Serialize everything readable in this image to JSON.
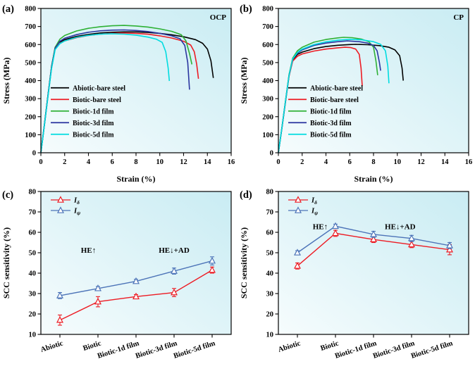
{
  "figure": {
    "bg": "#ffffff",
    "plot_gradient": [
      "#f6fcfd",
      "#c9ecf3"
    ],
    "axis_color": "#000000"
  },
  "chart_data": [
    {
      "key": "a",
      "label": "(a)",
      "tag": "OCP",
      "type": "line",
      "xlabel": "Strain (%)",
      "ylabel": "Stress (MPa)",
      "xlim": [
        0,
        16
      ],
      "ylim": [
        0,
        800
      ],
      "xticks": [
        0,
        2,
        4,
        6,
        8,
        10,
        12,
        14,
        16
      ],
      "yticks": [
        0,
        100,
        200,
        300,
        400,
        500,
        600,
        700,
        800
      ],
      "legend_position": "bottom-left",
      "series": [
        {
          "name": "Abiotic-bare steel",
          "color": "#000000",
          "x": [
            0,
            0.3,
            0.6,
            0.9,
            1.2,
            1.5,
            2,
            3,
            4,
            5,
            6,
            7,
            8,
            9,
            10,
            11,
            12,
            13,
            13.6,
            14.0,
            14.3,
            14.5
          ],
          "y": [
            0,
            160,
            320,
            480,
            585,
            610,
            627,
            645,
            656,
            664,
            668,
            670,
            670,
            667,
            662,
            654,
            643,
            627,
            607,
            575,
            510,
            415
          ]
        },
        {
          "name": "Biotic-bare steel",
          "color": "#ed1c24",
          "x": [
            0,
            0.3,
            0.6,
            0.9,
            1.2,
            1.5,
            2,
            3,
            4,
            5,
            6,
            7,
            8,
            9,
            10,
            11,
            12,
            12.6,
            12.9,
            13.1,
            13.25
          ],
          "y": [
            0,
            155,
            315,
            470,
            578,
            602,
            620,
            638,
            650,
            658,
            662,
            664,
            662,
            657,
            648,
            636,
            618,
            597,
            560,
            490,
            410
          ]
        },
        {
          "name": "Biotic-1d film",
          "color": "#2eb135",
          "x": [
            0,
            0.3,
            0.6,
            0.9,
            1.2,
            1.6,
            2,
            3,
            4,
            5,
            6,
            7,
            8,
            9,
            10,
            11,
            11.8,
            12.2,
            12.5,
            12.7
          ],
          "y": [
            0,
            158,
            318,
            475,
            585,
            630,
            650,
            675,
            690,
            699,
            704,
            706,
            703,
            697,
            687,
            673,
            655,
            620,
            550,
            490
          ]
        },
        {
          "name": "Biotic-3d film",
          "color": "#2b35a0",
          "x": [
            0,
            0.3,
            0.6,
            0.9,
            1.2,
            1.6,
            2,
            3,
            4,
            5,
            6,
            7,
            8,
            9,
            10,
            11,
            11.7,
            12.1,
            12.35,
            12.5
          ],
          "y": [
            0,
            158,
            318,
            475,
            580,
            618,
            635,
            655,
            668,
            676,
            680,
            681,
            678,
            672,
            662,
            648,
            632,
            595,
            500,
            350
          ]
        },
        {
          "name": "Biotic-5d film",
          "color": "#00dce0",
          "x": [
            0,
            0.3,
            0.6,
            0.9,
            1.2,
            1.6,
            2,
            3,
            4,
            5,
            6,
            7,
            8,
            9,
            9.7,
            10.2,
            10.5,
            10.7,
            10.8
          ],
          "y": [
            0,
            155,
            312,
            468,
            572,
            605,
            620,
            640,
            651,
            658,
            660,
            658,
            652,
            641,
            630,
            612,
            560,
            470,
            398
          ]
        }
      ]
    },
    {
      "key": "b",
      "label": "(b)",
      "tag": "CP",
      "type": "line",
      "xlabel": "Strain (%)",
      "ylabel": "Stress (MPa)",
      "xlim": [
        0,
        16
      ],
      "ylim": [
        0,
        800
      ],
      "xticks": [
        0,
        2,
        4,
        6,
        8,
        10,
        12,
        14,
        16
      ],
      "yticks": [
        0,
        100,
        200,
        300,
        400,
        500,
        600,
        700,
        800
      ],
      "legend_position": "bottom-left",
      "series": [
        {
          "name": "Abiotic-bare steel",
          "color": "#000000",
          "x": [
            0,
            0.3,
            0.6,
            0.9,
            1.2,
            1.6,
            2,
            3,
            4,
            5,
            6,
            6.5,
            7.5,
            8.5,
            9.3,
            9.8,
            10.2,
            10.4,
            10.5
          ],
          "y": [
            0,
            140,
            285,
            430,
            515,
            545,
            558,
            577,
            589,
            596,
            600,
            601,
            599,
            594,
            585,
            570,
            538,
            470,
            400
          ]
        },
        {
          "name": "Biotic-bare steel",
          "color": "#ed1c24",
          "x": [
            0,
            0.3,
            0.6,
            0.9,
            1.2,
            1.6,
            2,
            3,
            4,
            5,
            5.6,
            6.1,
            6.5,
            6.8,
            6.95,
            7.05
          ],
          "y": [
            0,
            138,
            280,
            425,
            508,
            535,
            548,
            564,
            575,
            582,
            585,
            583,
            575,
            545,
            470,
            370
          ]
        },
        {
          "name": "Biotic-1d film",
          "color": "#2eb135",
          "x": [
            0,
            0.3,
            0.6,
            0.9,
            1.2,
            1.6,
            2,
            3,
            4,
            5,
            5.5,
            6.2,
            7,
            7.6,
            8,
            8.2,
            8.35
          ],
          "y": [
            0,
            142,
            288,
            435,
            525,
            565,
            585,
            613,
            628,
            637,
            640,
            638,
            630,
            616,
            585,
            510,
            430
          ]
        },
        {
          "name": "Biotic-3d film",
          "color": "#2b35a0",
          "x": [
            0,
            0.3,
            0.6,
            0.9,
            1.2,
            1.6,
            2,
            3,
            4,
            5,
            5.8,
            6.8,
            7.5,
            8,
            8.3,
            8.5,
            8.6
          ],
          "y": [
            0,
            140,
            285,
            430,
            518,
            552,
            570,
            595,
            608,
            616,
            620,
            616,
            608,
            595,
            565,
            500,
            455
          ]
        },
        {
          "name": "Biotic-5d film",
          "color": "#00dce0",
          "x": [
            0,
            0.3,
            0.6,
            0.9,
            1.2,
            1.6,
            2,
            3,
            4,
            5,
            6,
            7,
            8,
            8.6,
            9,
            9.2,
            9.3
          ],
          "y": [
            0,
            140,
            285,
            430,
            520,
            556,
            575,
            600,
            615,
            624,
            629,
            626,
            616,
            601,
            565,
            480,
            385
          ]
        }
      ]
    },
    {
      "key": "c",
      "label": "(c)",
      "tag": "",
      "type": "category",
      "xlabel": "",
      "ylabel": "SCC sensitivity (%)",
      "ylim": [
        10,
        80
      ],
      "yticks": [
        10,
        20,
        30,
        40,
        50,
        60,
        70,
        80
      ],
      "categories": [
        "Abiotic",
        "Biotic",
        "Biotic-1d film",
        "Biotic-3d film",
        "Biotic-5d film"
      ],
      "legend_position": "top-left",
      "annotations": [
        {
          "text": "HE↑",
          "cx": 0.75,
          "y": 50
        },
        {
          "text": "HE↓+AD",
          "cx": 3.0,
          "y": 50
        }
      ],
      "series": [
        {
          "name_main": "I",
          "name_sub": "δ",
          "color": "#ed1c24",
          "values": [
            17,
            26,
            28.5,
            30.5,
            41.5
          ],
          "errors": [
            2.5,
            2.5,
            1,
            2,
            1.5
          ]
        },
        {
          "name_main": "I",
          "name_sub": "ψ",
          "color": "#4d74b8",
          "values": [
            29,
            32.5,
            36,
            41,
            46
          ],
          "errors": [
            1.5,
            1,
            1,
            1.5,
            2
          ]
        }
      ]
    },
    {
      "key": "d",
      "label": "(d)",
      "tag": "",
      "type": "category",
      "xlabel": "",
      "ylabel": "SCC sensitivity (%)",
      "ylim": [
        10,
        80
      ],
      "yticks": [
        10,
        20,
        30,
        40,
        50,
        60,
        70,
        80
      ],
      "categories": [
        "Abiotic",
        "Biotic",
        "Biotic-1d film",
        "Biotic-3d film",
        "Biotic-5d film"
      ],
      "legend_position": "top-left",
      "annotations": [
        {
          "text": "HE↑",
          "cx": 0.6,
          "y": 61.5
        },
        {
          "text": "HE↓+AD",
          "cx": 2.7,
          "y": 61.5
        }
      ],
      "series": [
        {
          "name_main": "I",
          "name_sub": "δ",
          "color": "#ed1c24",
          "values": [
            43.5,
            59.5,
            56.5,
            54,
            51.5
          ],
          "errors": [
            1.5,
            1.5,
            1.5,
            1.5,
            2.5
          ]
        },
        {
          "name_main": "I",
          "name_sub": "ψ",
          "color": "#4d74b8",
          "values": [
            50,
            63,
            59,
            57,
            53.5
          ],
          "errors": [
            1,
            1,
            1.5,
            1.5,
            1.5
          ]
        }
      ]
    }
  ]
}
